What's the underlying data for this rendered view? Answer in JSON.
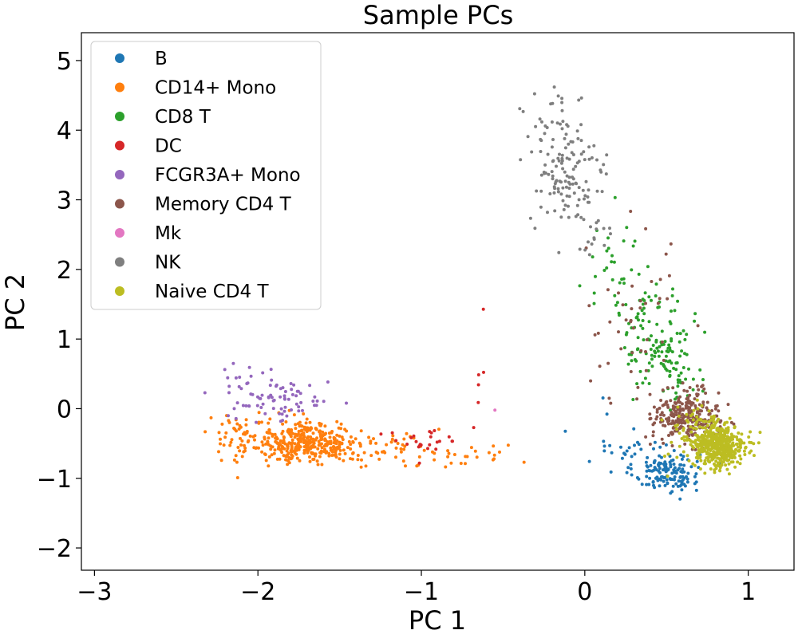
{
  "chart_data": {
    "type": "scatter",
    "title": "Sample PCs",
    "xlabel": "PC 1",
    "ylabel": "PC 2",
    "xlim": [
      -3.08,
      1.28
    ],
    "ylim": [
      -2.32,
      5.4
    ],
    "xticks": [
      -3,
      -2,
      -1,
      0,
      1
    ],
    "yticks": [
      -2,
      -1,
      0,
      1,
      2,
      3,
      4,
      5
    ],
    "grid": false,
    "legend_position": "top-left",
    "series": [
      {
        "name": "B",
        "color": "#1f77b4",
        "count": 170,
        "clusters": [
          {
            "cx": 0.5,
            "cy": -0.9,
            "sx": 0.1,
            "sy": 0.15,
            "w": 0.85
          },
          {
            "cx": 0.3,
            "cy": -0.6,
            "sx": 0.12,
            "sy": 0.12,
            "w": 0.12
          },
          {
            "cx": 0.05,
            "cy": -0.2,
            "sx": 0.06,
            "sy": 0.3,
            "w": 0.03
          }
        ]
      },
      {
        "name": "CD14+ Mono",
        "color": "#ff7f0e",
        "count": 500,
        "clusters": [
          {
            "cx": -1.7,
            "cy": -0.48,
            "sx": 0.16,
            "sy": 0.15,
            "w": 0.75
          },
          {
            "cx": -2.1,
            "cy": -0.4,
            "sx": 0.12,
            "sy": 0.18,
            "w": 0.1
          },
          {
            "cx": -1.2,
            "cy": -0.6,
            "sx": 0.22,
            "sy": 0.12,
            "w": 0.12
          },
          {
            "cx": -0.65,
            "cy": -0.65,
            "sx": 0.12,
            "sy": 0.1,
            "w": 0.03
          }
        ]
      },
      {
        "name": "CD8 T",
        "color": "#2ca02c",
        "count": 180,
        "clusters": [
          {
            "cx": 0.45,
            "cy": 1.0,
            "sx": 0.1,
            "sy": 0.35,
            "w": 0.65
          },
          {
            "cx": 0.2,
            "cy": 2.0,
            "sx": 0.1,
            "sy": 0.4,
            "w": 0.2
          },
          {
            "cx": 0.6,
            "cy": 0.4,
            "sx": 0.08,
            "sy": 0.15,
            "w": 0.15
          }
        ]
      },
      {
        "name": "DC",
        "color": "#d62728",
        "count": 30,
        "clusters": [
          {
            "cx": -1.0,
            "cy": -0.5,
            "sx": 0.12,
            "sy": 0.12,
            "w": 0.8
          },
          {
            "cx": -0.65,
            "cy": 0.3,
            "sx": 0.08,
            "sy": 0.4,
            "w": 0.2
          }
        ]
      },
      {
        "name": "FCGR3A+ Mono",
        "color": "#9467bd",
        "count": 85,
        "clusters": [
          {
            "cx": -1.85,
            "cy": 0.1,
            "sx": 0.15,
            "sy": 0.15,
            "w": 0.8
          },
          {
            "cx": -2.1,
            "cy": 0.4,
            "sx": 0.12,
            "sy": 0.15,
            "w": 0.2
          }
        ]
      },
      {
        "name": "Memory CD4 T",
        "color": "#8c564b",
        "count": 300,
        "clusters": [
          {
            "cx": 0.62,
            "cy": -0.1,
            "sx": 0.1,
            "sy": 0.18,
            "w": 0.85
          },
          {
            "cx": 0.3,
            "cy": 1.2,
            "sx": 0.15,
            "sy": 0.7,
            "w": 0.15
          }
        ]
      },
      {
        "name": "Mk",
        "color": "#e377c2",
        "count": 1,
        "points": [
          [
            -0.55,
            -0.02
          ]
        ]
      },
      {
        "name": "NK",
        "color": "#7f7f7f",
        "count": 160,
        "clusters": [
          {
            "cx": -0.1,
            "cy": 3.3,
            "sx": 0.12,
            "sy": 0.35,
            "w": 0.7
          },
          {
            "cx": -0.2,
            "cy": 4.0,
            "sx": 0.1,
            "sy": 0.3,
            "w": 0.2
          },
          {
            "cx": 0.05,
            "cy": 2.6,
            "sx": 0.08,
            "sy": 0.25,
            "w": 0.1
          }
        ]
      },
      {
        "name": "Naive CD4 T",
        "color": "#bcbd22",
        "count": 520,
        "clusters": [
          {
            "cx": 0.82,
            "cy": -0.55,
            "sx": 0.08,
            "sy": 0.15,
            "w": 0.85
          },
          {
            "cx": 0.7,
            "cy": -0.3,
            "sx": 0.1,
            "sy": 0.2,
            "w": 0.15
          }
        ]
      }
    ]
  }
}
